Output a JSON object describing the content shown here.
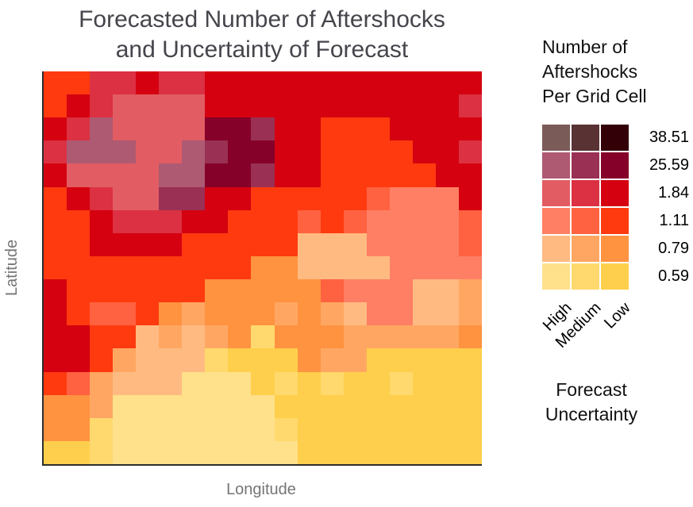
{
  "title": {
    "line1": "Forecasted Number of Aftershocks",
    "line2": "and Uncertainty of Forecast"
  },
  "axes": {
    "y_label": "Latitude",
    "x_label": "Longitude"
  },
  "legend": {
    "title_lines": [
      "Number of",
      "Aftershocks",
      "Per Grid Cell"
    ],
    "value_labels": [
      "38.51",
      "25.59",
      "1.84",
      "1.11",
      "0.79",
      "0.59"
    ],
    "uncertainty_labels": [
      "High",
      "Medium",
      "Low"
    ],
    "axis_title_line1": "Forecast",
    "axis_title_line2": "Uncertainty",
    "palette_rows": [
      [
        "A",
        "B",
        "C"
      ],
      [
        "D",
        "E",
        "F"
      ],
      [
        "G",
        "H",
        "I"
      ],
      [
        "J",
        "K",
        "L"
      ],
      [
        "M",
        "N",
        "O"
      ],
      [
        "P",
        "Q",
        "R"
      ]
    ]
  },
  "chart_data": {
    "type": "heatmap",
    "title": "Forecasted Number of Aftershocks and Uncertainty of Forecast",
    "xlabel": "Longitude",
    "ylabel": "Latitude",
    "grid_cols": 19,
    "grid_rows": 17,
    "legend_title": "Number of Aftershocks Per Grid Cell",
    "legend_values": [
      38.51,
      25.59,
      1.84,
      1.11,
      0.79,
      0.59
    ],
    "uncertainty_levels": [
      "High",
      "Medium",
      "Low"
    ],
    "palette": {
      "A": "#7b5b58",
      "B": "#593233",
      "C": "#330008",
      "D": "#ad5a72",
      "E": "#9a3154",
      "F": "#850129",
      "G": "#e25d63",
      "H": "#db3142",
      "I": "#d50010",
      "J": "#ff7f64",
      "K": "#ff6240",
      "L": "#ff3a0f",
      "M": "#ffba82",
      "N": "#ffa762",
      "O": "#ff9340",
      "P": "#ffe08b",
      "Q": "#ffd96d",
      "R": "#fecf4c"
    },
    "code_meaning": {
      "A": {
        "value": 38.51,
        "uncertainty": "High"
      },
      "B": {
        "value": 38.51,
        "uncertainty": "Medium"
      },
      "C": {
        "value": 38.51,
        "uncertainty": "Low"
      },
      "D": {
        "value": 25.59,
        "uncertainty": "High"
      },
      "E": {
        "value": 25.59,
        "uncertainty": "Medium"
      },
      "F": {
        "value": 25.59,
        "uncertainty": "Low"
      },
      "G": {
        "value": 1.84,
        "uncertainty": "High"
      },
      "H": {
        "value": 1.84,
        "uncertainty": "Medium"
      },
      "I": {
        "value": 1.84,
        "uncertainty": "Low"
      },
      "J": {
        "value": 1.11,
        "uncertainty": "High"
      },
      "K": {
        "value": 1.11,
        "uncertainty": "Medium"
      },
      "L": {
        "value": 1.11,
        "uncertainty": "Low"
      },
      "M": {
        "value": 0.79,
        "uncertainty": "High"
      },
      "N": {
        "value": 0.79,
        "uncertainty": "Medium"
      },
      "O": {
        "value": 0.79,
        "uncertainty": "Low"
      },
      "P": {
        "value": 0.59,
        "uncertainty": "High"
      },
      "Q": {
        "value": 0.59,
        "uncertainty": "Medium"
      },
      "R": {
        "value": 0.59,
        "uncertainty": "Low"
      }
    },
    "grid": [
      "LLHHIHHIIIIIIIIIIII",
      "LIHGGGGIIIIIIIIIIIH",
      "IHDGGGGFFEIILLLIIII",
      "HDDDGGDEFFIILLLLIIH",
      "IGGGGDDFFEIILLLLLII",
      "LIHGGEEIILLLLLKJJJI",
      "LLIHHHIILLLKLKJJJJK",
      "LLIIIILLLLLMMMJJJJK",
      "LLLLLLLLLOOMMMMJJJJ",
      "ILLLLLLOOOOOKJJJMMN",
      "ILKKLONOOONONMJJMMN",
      "IILLMNMNOQOOONNNNNO",
      "IILNMMMQRRRONNRRRRR",
      "LKNMMMPPPRQRQRRQRRR",
      "OONPPPPPPPRRRRRRRRR",
      "OOQPPPPPPPQRRRRRRRR",
      "RRQPPPPPPPPRRRRRRRR"
    ]
  }
}
